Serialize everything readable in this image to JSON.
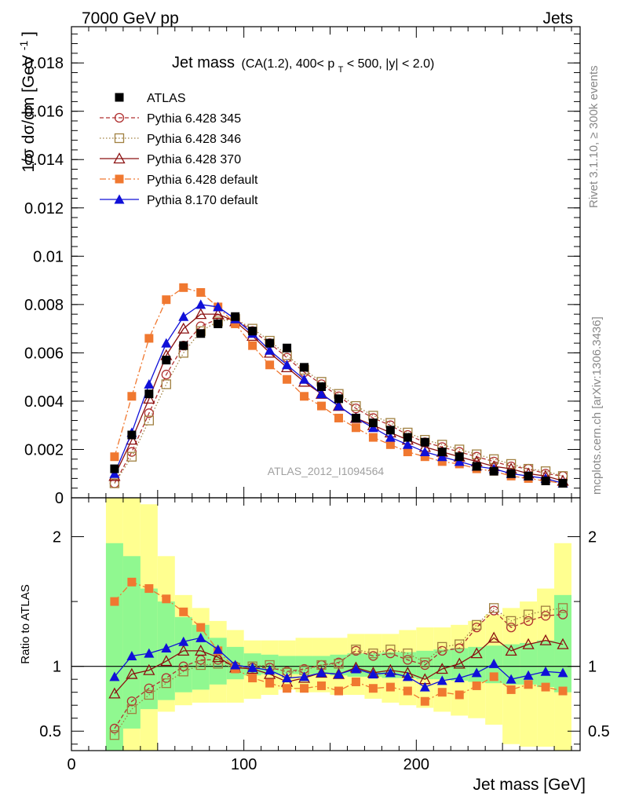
{
  "header": {
    "left": "7000 GeV pp",
    "right": "Jets"
  },
  "annotations": {
    "rivet": "Rivet 3.1.10, ≥ 300k events",
    "mcplots": "mcplots.cern.ch [arXiv:1306.3436]",
    "analysis": "ATLAS_2012_I1094564"
  },
  "colors": {
    "atlas": "#000000",
    "p345": "#b03030",
    "p346": "#a08040",
    "p370": "#8b1010",
    "p6def": "#f07830",
    "p8def": "#1010d8",
    "band_inner": "#90f890",
    "band_outer": "#ffff90"
  },
  "chart_data": {
    "type": "line",
    "title": "Jet mass",
    "title_cuts": "(CA(1.2), 400< p",
    "title_sub": "T",
    "title_cuts2": " < 500, |y| < 2.0)",
    "xlabel": "Jet mass [GeV]",
    "ylabel": "1/σ dσ/dm [GeV",
    "ylabel_sup": "-1",
    "ylabel_close": "]",
    "ratio_ylabel": "Ratio to ATLAS",
    "xlim": [
      0,
      295
    ],
    "ylim": [
      0,
      0.0195
    ],
    "ratio_ylim": [
      0.35,
      2.3
    ],
    "x_ticks": [
      0,
      100,
      200
    ],
    "y_ticks": [
      0,
      0.002,
      0.004,
      0.006,
      0.008,
      0.01,
      0.012,
      0.014,
      0.016,
      0.018
    ],
    "y_tick_labels": [
      "0",
      "0.002",
      "0.004",
      "0.006",
      "0.008",
      "0.01",
      "0.012",
      "0.014",
      "0.016",
      "0.018"
    ],
    "ratio_ticks": [
      0.5,
      1,
      2
    ],
    "ratio_tick_labels": [
      "0.5",
      "1",
      "2"
    ],
    "x": [
      25,
      35,
      45,
      55,
      65,
      75,
      85,
      95,
      105,
      115,
      125,
      135,
      145,
      155,
      165,
      175,
      185,
      195,
      205,
      215,
      225,
      235,
      245,
      255,
      265,
      275,
      285
    ],
    "bin_edges": [
      20,
      30,
      40,
      50,
      60,
      70,
      80,
      90,
      100,
      110,
      120,
      130,
      140,
      150,
      160,
      170,
      180,
      190,
      200,
      210,
      220,
      230,
      240,
      250,
      260,
      270,
      280,
      290
    ],
    "band_inner": [
      [
        0.35,
        1.95
      ],
      [
        0.52,
        1.85
      ],
      [
        0.67,
        1.6
      ],
      [
        0.74,
        1.5
      ],
      [
        0.8,
        1.38
      ],
      [
        0.82,
        1.32
      ],
      [
        0.86,
        1.22
      ],
      [
        0.9,
        1.15
      ],
      [
        0.93,
        1.1
      ],
      [
        0.94,
        1.09
      ],
      [
        0.94,
        1.08
      ],
      [
        0.94,
        1.08
      ],
      [
        0.94,
        1.08
      ],
      [
        0.93,
        1.09
      ],
      [
        0.92,
        1.1
      ],
      [
        0.92,
        1.1
      ],
      [
        0.91,
        1.11
      ],
      [
        0.91,
        1.11
      ],
      [
        0.9,
        1.12
      ],
      [
        0.9,
        1.13
      ],
      [
        0.89,
        1.14
      ],
      [
        0.88,
        1.15
      ],
      [
        0.87,
        1.16
      ],
      [
        0.86,
        1.17
      ],
      [
        0.86,
        1.18
      ],
      [
        0.84,
        1.2
      ],
      [
        0.8,
        1.55
      ]
    ],
    "band_outer": [
      [
        0.35,
        2.3
      ],
      [
        0.35,
        2.3
      ],
      [
        0.35,
        2.25
      ],
      [
        0.65,
        1.85
      ],
      [
        0.7,
        1.55
      ],
      [
        0.72,
        1.45
      ],
      [
        0.72,
        1.35
      ],
      [
        0.72,
        1.28
      ],
      [
        0.75,
        1.2
      ],
      [
        0.78,
        1.2
      ],
      [
        0.82,
        1.2
      ],
      [
        0.8,
        1.22
      ],
      [
        0.8,
        1.22
      ],
      [
        0.78,
        1.22
      ],
      [
        0.78,
        1.25
      ],
      [
        0.75,
        1.25
      ],
      [
        0.72,
        1.25
      ],
      [
        0.7,
        1.28
      ],
      [
        0.68,
        1.3
      ],
      [
        0.65,
        1.3
      ],
      [
        0.62,
        1.32
      ],
      [
        0.6,
        1.35
      ],
      [
        0.55,
        1.4
      ],
      [
        0.4,
        1.45
      ],
      [
        0.38,
        1.5
      ],
      [
        0.38,
        1.6
      ],
      [
        0.35,
        1.95
      ]
    ],
    "series": [
      {
        "name": "ATLAS",
        "color": "#000000",
        "marker": "square-filled",
        "line": "none",
        "values": [
          0.0012,
          0.0026,
          0.0043,
          0.0057,
          0.0063,
          0.0068,
          0.0072,
          0.0075,
          0.0069,
          0.0064,
          0.0062,
          0.0054,
          0.0046,
          0.0041,
          0.0033,
          0.0031,
          0.0028,
          0.0025,
          0.0023,
          0.0019,
          0.0017,
          0.0013,
          0.0011,
          0.001,
          0.0009,
          0.0007,
          0.0006
        ],
        "ratio": [
          1,
          1,
          1,
          1,
          1,
          1,
          1,
          1,
          1,
          1,
          1,
          1,
          1,
          1,
          1,
          1,
          1,
          1,
          1,
          1,
          1,
          1,
          1,
          1,
          1,
          1,
          1
        ]
      },
      {
        "name": "Pythia 6.428 345",
        "color": "#b03030",
        "marker": "circle-open",
        "line": "dashed",
        "values": [
          0.0006,
          0.0019,
          0.0035,
          0.0051,
          0.0063,
          0.0071,
          0.0074,
          0.0074,
          0.0069,
          0.0064,
          0.0058,
          0.0052,
          0.0047,
          0.0042,
          0.0037,
          0.0033,
          0.003,
          0.0026,
          0.0023,
          0.0021,
          0.0019,
          0.0017,
          0.0015,
          0.0013,
          0.0012,
          0.001,
          0.0009
        ],
        "ratio": [
          0.52,
          0.73,
          0.83,
          0.91,
          1.0,
          1.05,
          1.05,
          1.0,
          0.99,
          0.99,
          0.96,
          0.98,
          1.01,
          1.03,
          1.12,
          1.08,
          1.1,
          1.05,
          1.01,
          1.12,
          1.14,
          1.3,
          1.43,
          1.3,
          1.35,
          1.39,
          1.4
        ]
      },
      {
        "name": "Pythia 6.428 346",
        "color": "#a08040",
        "marker": "square-open",
        "line": "dotted",
        "values": [
          0.0006,
          0.0017,
          0.0032,
          0.0047,
          0.006,
          0.0069,
          0.0073,
          0.0074,
          0.007,
          0.0065,
          0.0059,
          0.0053,
          0.0048,
          0.0043,
          0.0038,
          0.0034,
          0.0031,
          0.0027,
          0.0024,
          0.0022,
          0.002,
          0.0018,
          0.0016,
          0.0014,
          0.0012,
          0.0011,
          0.0009
        ],
        "ratio": [
          0.47,
          0.67,
          0.78,
          0.87,
          0.96,
          1.01,
          1.02,
          0.99,
          1.0,
          1.01,
          0.95,
          0.97,
          1.01,
          1.02,
          1.13,
          1.1,
          1.13,
          1.1,
          1.03,
          1.15,
          1.17,
          1.32,
          1.45,
          1.35,
          1.4,
          1.43,
          1.45
        ]
      },
      {
        "name": "Pythia 6.428 370",
        "color": "#8b1010",
        "marker": "triangle-open",
        "line": "solid",
        "values": [
          0.0009,
          0.0024,
          0.0041,
          0.0059,
          0.007,
          0.0076,
          0.0076,
          0.0073,
          0.0067,
          0.006,
          0.0054,
          0.0048,
          0.0043,
          0.0038,
          0.0033,
          0.003,
          0.0027,
          0.0024,
          0.0021,
          0.0019,
          0.0017,
          0.0015,
          0.0013,
          0.0012,
          0.001,
          0.0009,
          0.0007
        ],
        "ratio": [
          0.79,
          0.94,
          0.97,
          1.04,
          1.12,
          1.12,
          1.07,
          0.99,
          0.98,
          0.94,
          0.88,
          0.91,
          0.95,
          0.94,
          0.99,
          0.95,
          0.97,
          0.95,
          0.9,
          0.98,
          1.02,
          1.1,
          1.22,
          1.12,
          1.17,
          1.2,
          1.17
        ]
      },
      {
        "name": "Pythia 6.428 default",
        "color": "#f07830",
        "marker": "square-filled",
        "line": "dashdot",
        "values": [
          0.0017,
          0.0042,
          0.0066,
          0.0082,
          0.0087,
          0.0085,
          0.0079,
          0.0072,
          0.0063,
          0.0055,
          0.0049,
          0.0042,
          0.0038,
          0.0033,
          0.0029,
          0.0025,
          0.0022,
          0.0019,
          0.0017,
          0.0015,
          0.0014,
          0.0012,
          0.0011,
          0.0009,
          0.0008,
          0.0007,
          0.0006
        ],
        "ratio": [
          1.5,
          1.65,
          1.6,
          1.52,
          1.42,
          1.3,
          1.12,
          0.98,
          0.91,
          0.87,
          0.83,
          0.83,
          0.85,
          0.81,
          0.88,
          0.83,
          0.84,
          0.81,
          0.73,
          0.8,
          0.78,
          0.85,
          0.92,
          0.82,
          0.86,
          0.84,
          0.81
        ]
      },
      {
        "name": "Pythia 8.170 default",
        "color": "#1010d8",
        "marker": "triangle-filled",
        "line": "solid",
        "values": [
          0.001,
          0.0027,
          0.0047,
          0.0064,
          0.0075,
          0.008,
          0.0079,
          0.0074,
          0.0068,
          0.0061,
          0.0055,
          0.0049,
          0.0043,
          0.0038,
          0.0033,
          0.0029,
          0.0025,
          0.0022,
          0.0019,
          0.0017,
          0.0015,
          0.0013,
          0.0012,
          0.001,
          0.0009,
          0.0008,
          0.0006
        ],
        "ratio": [
          0.92,
          1.08,
          1.1,
          1.14,
          1.19,
          1.22,
          1.13,
          1.01,
          0.99,
          0.97,
          0.91,
          0.92,
          0.95,
          0.94,
          0.98,
          0.94,
          0.95,
          0.92,
          0.84,
          0.89,
          0.91,
          0.95,
          1.02,
          0.9,
          0.93,
          0.96,
          0.95
        ]
      }
    ]
  }
}
